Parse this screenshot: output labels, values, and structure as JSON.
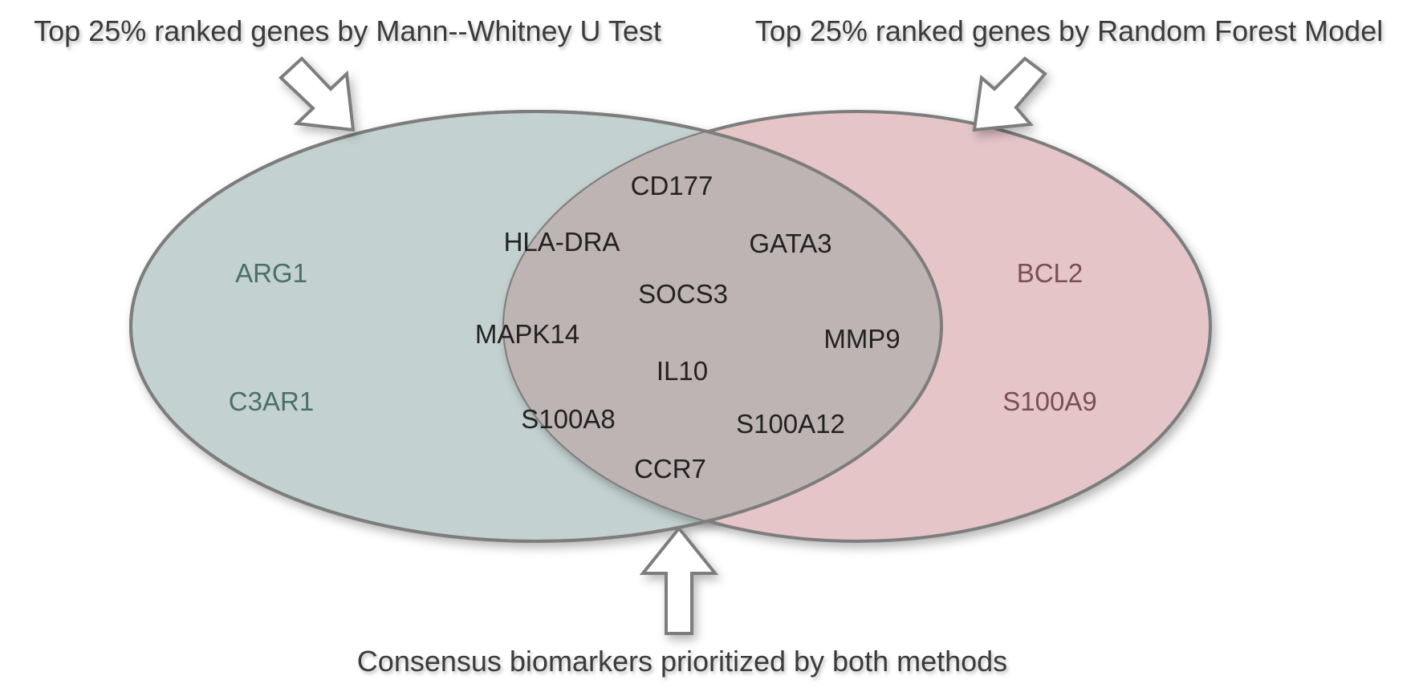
{
  "captions": {
    "left": "Top 25% ranked genes by Mann--Whitney U Test",
    "right": "Top 25% ranked genes by Random Forest Model",
    "bottom": "Consensus biomarkers prioritized by both methods"
  },
  "sets": {
    "left_only": [
      "ARG1",
      "C3AR1"
    ],
    "right_only": [
      "BCL2",
      "S100A9"
    ],
    "intersection": [
      "CD177",
      "HLA-DRA",
      "GATA3",
      "SOCS3",
      "MAPK14",
      "MMP9",
      "IL10",
      "S100A8",
      "S100A12",
      "CCR7"
    ]
  },
  "colors": {
    "left_fill": "#c3d1d0",
    "right_fill": "#e6c5c8",
    "intersection_fill": "#bdb4b3",
    "outline": "#7d7d7d",
    "left_text": "#4b7068",
    "right_text": "#7a4f52",
    "intersection_text": "#222222",
    "caption_text": "#3a3a3a"
  }
}
